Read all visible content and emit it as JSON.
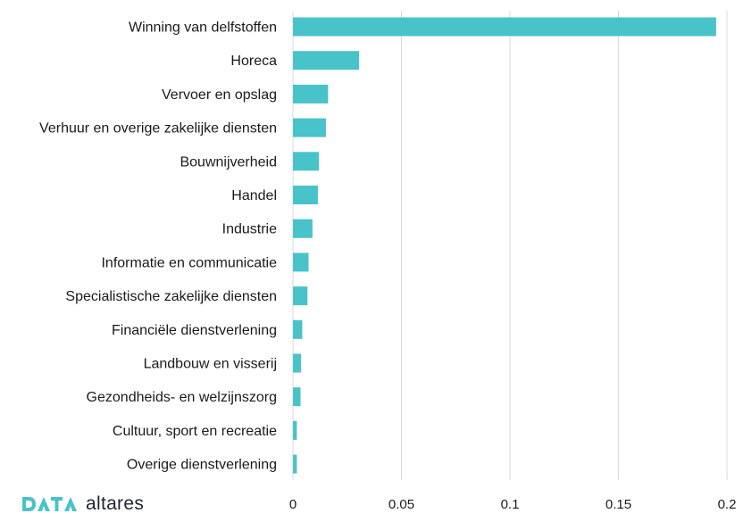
{
  "chart_data": {
    "type": "bar",
    "orientation": "horizontal",
    "title": "",
    "xlabel": "",
    "ylabel": "",
    "xlim": [
      0,
      0.2
    ],
    "xticks": [
      "0",
      "0.05",
      "0.1",
      "0.15",
      "0.2"
    ],
    "grid": "vertical",
    "categories": [
      "Winning van delfstoffen",
      "Horeca",
      "Vervoer en opslag",
      "Verhuur en overige zakelijke diensten",
      "Bouwnijverheid",
      "Handel",
      "Industrie",
      "Informatie en communicatie",
      "Specialistische zakelijke diensten",
      "Financiële dienstverlening",
      "Landbouw en visserij",
      "Gezondheids- en welzijnszorg",
      "Cultuur, sport en recreatie",
      "Overige dienstverlening"
    ],
    "values": [
      0.195,
      0.0305,
      0.0162,
      0.0152,
      0.012,
      0.0115,
      0.009,
      0.0072,
      0.0067,
      0.0043,
      0.0037,
      0.0035,
      0.0018,
      0.0018
    ]
  },
  "colors": {
    "bar": "#48c3c9",
    "grid": "#d9d9d9",
    "logo_mark": "#48c3c9"
  },
  "logo": {
    "mark_icon": "data-logo-icon",
    "word": "altares"
  }
}
